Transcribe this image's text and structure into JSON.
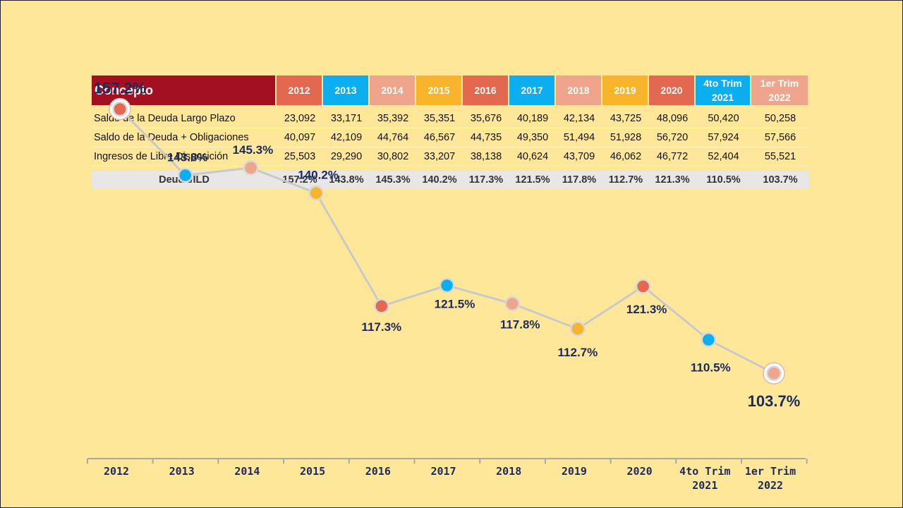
{
  "table": {
    "concept_header": "Concepto",
    "periods": [
      {
        "lines": [
          "2012"
        ],
        "color": "#E2694F"
      },
      {
        "lines": [
          "2013"
        ],
        "color": "#0BAEEE"
      },
      {
        "lines": [
          "2014"
        ],
        "color": "#EFA58B"
      },
      {
        "lines": [
          "2015"
        ],
        "color": "#F8B42A"
      },
      {
        "lines": [
          "2016"
        ],
        "color": "#E2694F"
      },
      {
        "lines": [
          "2017"
        ],
        "color": "#0BAEEE"
      },
      {
        "lines": [
          "2018"
        ],
        "color": "#EFA58B"
      },
      {
        "lines": [
          "2019"
        ],
        "color": "#F8B42A"
      },
      {
        "lines": [
          "2020"
        ],
        "color": "#E2694F"
      },
      {
        "lines": [
          "4to Trim",
          "2021"
        ],
        "color": "#0BAEEE"
      },
      {
        "lines": [
          "1er Trim",
          "2022"
        ],
        "color": "#EFA58B"
      }
    ],
    "rows": [
      {
        "label": "Saldo de la Deuda Largo Plazo",
        "values": [
          "23,092",
          "33,171",
          "35,392",
          "35,351",
          "35,676",
          "40,189",
          "42,134",
          "43,725",
          "48,096",
          "50,420",
          "50,258"
        ]
      },
      {
        "label": "Saldo de la Deuda + Obligaciones",
        "values": [
          "40,097",
          "42,109",
          "44,764",
          "46,567",
          "44,735",
          "49,350",
          "51,494",
          "51,928",
          "56,720",
          "57,924",
          "57,566"
        ]
      },
      {
        "label": "Ingresos de Libre Disposición",
        "values": [
          "25,503",
          "29,290",
          "30,802",
          "33,207",
          "38,138",
          "40,624",
          "43,709",
          "46,062",
          "46,772",
          "52,404",
          "55,521"
        ]
      }
    ],
    "ratio_row": {
      "label": "Deuda/ILD",
      "values": [
        "157.2%",
        "143.8%",
        "145.3%",
        "140.2%",
        "117.3%",
        "121.5%",
        "117.8%",
        "112.7%",
        "121.3%",
        "110.5%",
        "103.7%"
      ]
    }
  },
  "chart_data": {
    "type": "line",
    "categories": [
      [
        "2012"
      ],
      [
        "2013"
      ],
      [
        "2014"
      ],
      [
        "2015"
      ],
      [
        "2016"
      ],
      [
        "2017"
      ],
      [
        "2018"
      ],
      [
        "2019"
      ],
      [
        "2020"
      ],
      [
        "4to Trim",
        "2021"
      ],
      [
        "1er Trim",
        "2022"
      ]
    ],
    "values": [
      157.2,
      143.8,
      145.3,
      140.2,
      117.3,
      121.5,
      117.8,
      112.7,
      121.3,
      110.5,
      103.7
    ],
    "labels": [
      "157.2%",
      "143.8%",
      "145.3%",
      "140.2%",
      "117.3%",
      "121.5%",
      "117.8%",
      "112.7%",
      "121.3%",
      "110.5%",
      "103.7%"
    ],
    "label_position": [
      "above",
      "above",
      "above",
      "above",
      "below",
      "below",
      "below",
      "below",
      "below",
      "below",
      "below"
    ],
    "label_emphasis": [
      true,
      false,
      false,
      false,
      false,
      false,
      false,
      false,
      false,
      false,
      true
    ],
    "marker_colors": [
      "#E2694F",
      "#0BAEEE",
      "#EFA58B",
      "#F8B42A",
      "#E2694F",
      "#0BAEEE",
      "#EFA58B",
      "#F8B42A",
      "#E2694F",
      "#0BAEEE",
      "#EFA58B"
    ],
    "line_color": "#C9C9C9",
    "title": "",
    "xlabel": "",
    "ylabel": "",
    "ylim": [
      95,
      165
    ],
    "grid": false,
    "legend": "none"
  },
  "colors": {
    "background": "#FFE79A",
    "label_text": "#1B2A5C",
    "header_dark": "#A31022"
  }
}
